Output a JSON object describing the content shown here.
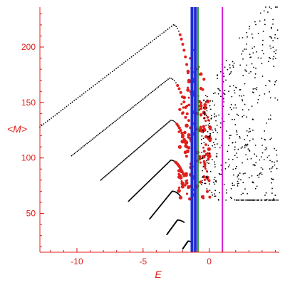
{
  "chart_data": {
    "type": "scatter",
    "title": "",
    "xlabel": "E",
    "ylabel": "<M>",
    "xlim": [
      -12.8,
      5.3
    ],
    "ylim": [
      15,
      236
    ],
    "xticks": [
      -10,
      -5,
      0
    ],
    "yticks": [
      50,
      100,
      150,
      200
    ],
    "grid": false,
    "legend": "none",
    "colors": {
      "axes": "#e0201c",
      "black_points": "#000000",
      "red_points": "#e0201c",
      "vline_blue": "#1f2bd6",
      "vline_green": "#1a8a1a",
      "vline_magenta": "#d61ad6"
    },
    "branches": [
      {
        "start": [
          -12.8,
          128
        ],
        "peak": [
          -2.7,
          220
        ],
        "end": [
          -1.3,
          150
        ]
      },
      {
        "start": [
          -10.4,
          102
        ],
        "peak": [
          -3.0,
          172
        ],
        "end": [
          -1.3,
          120
        ]
      },
      {
        "start": [
          -8.2,
          80
        ],
        "peak": [
          -2.9,
          134
        ],
        "end": [
          -1.6,
          106
        ]
      },
      {
        "start": [
          -6.1,
          61
        ],
        "peak": [
          -2.9,
          98
        ],
        "end": [
          -1.9,
          84
        ]
      },
      {
        "start": [
          -4.5,
          45
        ],
        "peak": [
          -2.8,
          70
        ],
        "end": [
          -2.2,
          66
        ]
      },
      {
        "start": [
          -3.2,
          31
        ],
        "peak": [
          -2.4,
          44
        ],
        "end": [
          -1.9,
          42
        ]
      },
      {
        "start": [
          -2.0,
          18
        ],
        "peak": [
          -1.6,
          25
        ],
        "end": [
          -1.3,
          24
        ]
      }
    ],
    "vertical_lines": [
      {
        "x": -1.3,
        "color": "#1f2bd6"
      },
      {
        "x": -1.05,
        "color": "#1f2bd6"
      },
      {
        "x": -0.85,
        "color": "#1a8a1a"
      },
      {
        "x": 1.0,
        "color": "#d61ad6"
      }
    ],
    "scatter_region": {
      "xrange": [
        -0.6,
        5.2
      ],
      "yrange": [
        62,
        236
      ]
    }
  }
}
